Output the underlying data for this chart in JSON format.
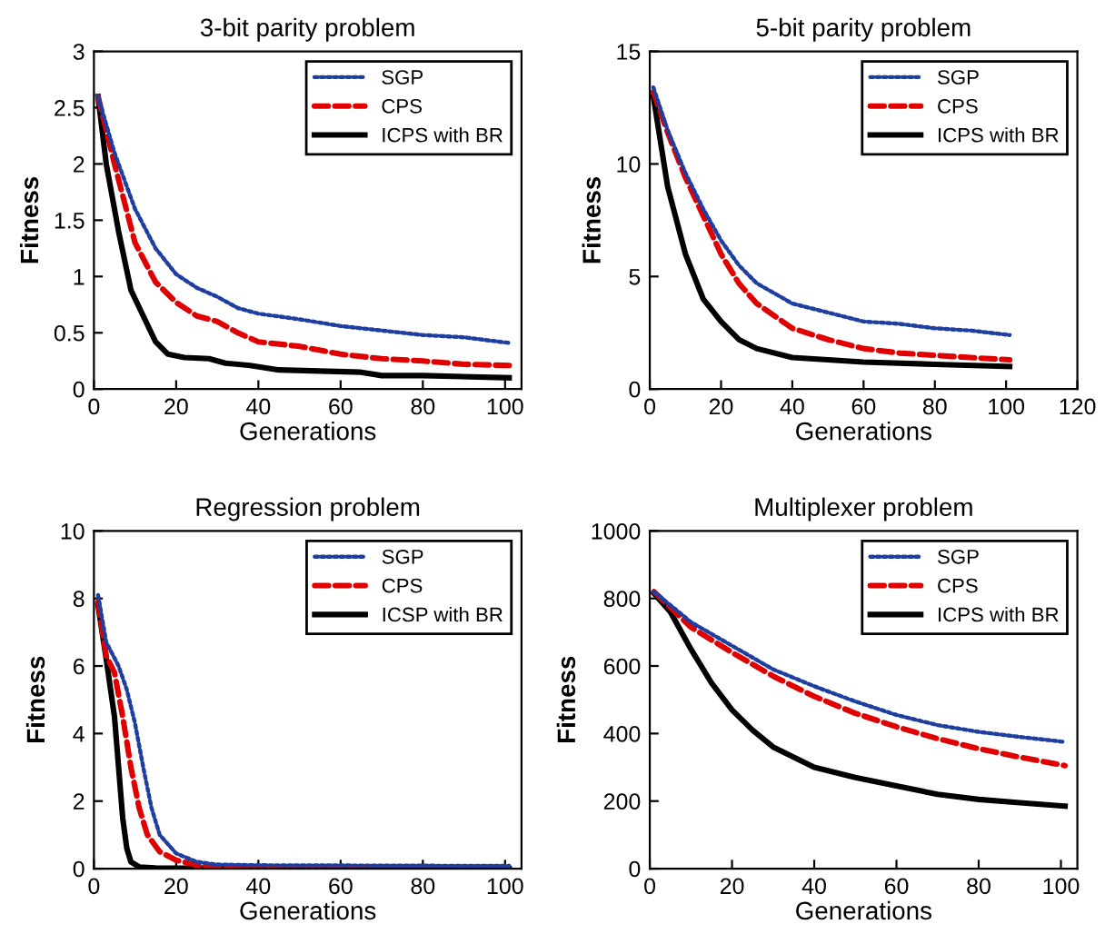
{
  "chart_data": [
    {
      "type": "line",
      "title": "3-bit parity problem",
      "xlabel": "Generations",
      "ylabel": "Fitness",
      "xlim": [
        0,
        104
      ],
      "xticks": [
        0,
        20,
        40,
        60,
        80,
        100
      ],
      "ylim": [
        0,
        3
      ],
      "yticks": [
        0,
        0.5,
        1,
        1.5,
        2,
        2.5,
        3
      ],
      "legend": "top right",
      "grid": false,
      "series": [
        {
          "name": "SGP",
          "color": "#1f3fa0",
          "line_style": "dotted",
          "x": [
            1,
            5,
            10,
            15,
            20,
            25,
            30,
            35,
            40,
            50,
            60,
            70,
            80,
            90,
            101
          ],
          "values": [
            2.6,
            2.1,
            1.6,
            1.25,
            1.02,
            0.9,
            0.82,
            0.72,
            0.67,
            0.62,
            0.56,
            0.52,
            0.48,
            0.46,
            0.41
          ]
        },
        {
          "name": "CPS",
          "color": "#e00000",
          "line_style": "dashed",
          "x": [
            1,
            5,
            10,
            15,
            20,
            25,
            30,
            35,
            40,
            50,
            60,
            70,
            80,
            90,
            101
          ],
          "values": [
            2.6,
            2.0,
            1.3,
            0.95,
            0.77,
            0.65,
            0.6,
            0.5,
            0.42,
            0.38,
            0.31,
            0.27,
            0.25,
            0.22,
            0.21
          ]
        },
        {
          "name": "ICPS with BR",
          "color": "#000000",
          "line_style": "solid",
          "x": [
            1,
            3,
            6,
            9,
            12,
            15,
            18,
            22,
            28,
            32,
            38,
            45,
            55,
            65,
            70,
            80,
            101
          ],
          "values": [
            2.6,
            2.0,
            1.4,
            0.88,
            0.65,
            0.42,
            0.31,
            0.28,
            0.27,
            0.23,
            0.21,
            0.17,
            0.16,
            0.15,
            0.12,
            0.12,
            0.1
          ]
        }
      ]
    },
    {
      "type": "line",
      "title": "5-bit parity problem",
      "xlabel": "Generations",
      "ylabel": "Fitness",
      "xlim": [
        0,
        120
      ],
      "xticks": [
        0,
        20,
        40,
        60,
        80,
        100,
        120
      ],
      "ylim": [
        0,
        15
      ],
      "yticks": [
        0,
        5,
        10,
        15
      ],
      "legend": "top right",
      "grid": false,
      "series": [
        {
          "name": "SGP",
          "color": "#1f3fa0",
          "line_style": "dotted",
          "x": [
            1,
            5,
            10,
            15,
            20,
            25,
            30,
            40,
            50,
            60,
            70,
            80,
            90,
            101
          ],
          "values": [
            13.4,
            11.5,
            9.6,
            8.0,
            6.6,
            5.5,
            4.7,
            3.8,
            3.4,
            3.0,
            2.9,
            2.7,
            2.6,
            2.4
          ]
        },
        {
          "name": "CPS",
          "color": "#e00000",
          "line_style": "dashed",
          "x": [
            1,
            5,
            10,
            15,
            20,
            25,
            30,
            40,
            50,
            60,
            70,
            80,
            90,
            101
          ],
          "values": [
            13.2,
            11.4,
            9.4,
            7.7,
            6.0,
            4.7,
            3.8,
            2.7,
            2.2,
            1.8,
            1.6,
            1.5,
            1.4,
            1.3
          ]
        },
        {
          "name": "ICPS with BR",
          "color": "#000000",
          "line_style": "solid",
          "x": [
            1,
            5,
            10,
            15,
            20,
            25,
            30,
            40,
            50,
            60,
            80,
            101
          ],
          "values": [
            13.0,
            9.0,
            6.0,
            4.0,
            3.0,
            2.2,
            1.8,
            1.4,
            1.3,
            1.2,
            1.1,
            1.0
          ]
        }
      ]
    },
    {
      "type": "line",
      "title": "Regression problem",
      "xlabel": "Generations",
      "ylabel": "Fitness",
      "xlim": [
        0,
        104
      ],
      "xticks": [
        0,
        20,
        40,
        60,
        80,
        100
      ],
      "ylim": [
        0,
        10
      ],
      "yticks": [
        0,
        2,
        4,
        6,
        8,
        10
      ],
      "legend": "top right",
      "grid": false,
      "series": [
        {
          "name": "SGP",
          "color": "#1f3fa0",
          "line_style": "dotted",
          "x": [
            1,
            3,
            6,
            8,
            10,
            12,
            14,
            16,
            20,
            25,
            30,
            40,
            101
          ],
          "values": [
            8.1,
            6.7,
            6.0,
            5.3,
            4.3,
            3.0,
            1.8,
            1.0,
            0.45,
            0.2,
            0.12,
            0.1,
            0.08
          ]
        },
        {
          "name": "CPS",
          "color": "#e00000",
          "line_style": "dashed",
          "x": [
            1,
            3,
            5,
            7,
            9,
            11,
            13,
            16,
            20,
            25,
            30,
            101
          ],
          "values": [
            7.9,
            6.3,
            5.8,
            4.5,
            3.0,
            1.8,
            1.0,
            0.5,
            0.25,
            0.1,
            0.05,
            0.03
          ]
        },
        {
          "name": "ICSP with BR",
          "color": "#000000",
          "line_style": "solid",
          "x": [
            1,
            3,
            5,
            6,
            7,
            8,
            9,
            11,
            15,
            101
          ],
          "values": [
            7.8,
            6.2,
            4.5,
            3.0,
            1.5,
            0.6,
            0.2,
            0.05,
            0.02,
            0.0
          ]
        }
      ]
    },
    {
      "type": "line",
      "title": "Multiplexer problem",
      "xlabel": "Generations",
      "ylabel": "Fitness",
      "xlim": [
        0,
        104
      ],
      "xticks": [
        0,
        20,
        40,
        60,
        80,
        100
      ],
      "ylim": [
        0,
        1000
      ],
      "yticks": [
        0,
        200,
        400,
        600,
        800,
        1000
      ],
      "legend": "top right",
      "grid": false,
      "series": [
        {
          "name": "SGP",
          "color": "#1f3fa0",
          "line_style": "dotted",
          "x": [
            1,
            10,
            20,
            30,
            40,
            50,
            60,
            70,
            80,
            90,
            101
          ],
          "values": [
            820,
            730,
            660,
            590,
            540,
            495,
            455,
            425,
            405,
            390,
            375
          ]
        },
        {
          "name": "CPS",
          "color": "#e00000",
          "line_style": "dashed",
          "x": [
            1,
            10,
            20,
            30,
            40,
            50,
            60,
            70,
            80,
            90,
            101
          ],
          "values": [
            820,
            715,
            640,
            570,
            510,
            460,
            420,
            385,
            355,
            330,
            305
          ]
        },
        {
          "name": "ICPS with BR",
          "color": "#000000",
          "line_style": "solid",
          "x": [
            1,
            5,
            10,
            15,
            20,
            25,
            30,
            40,
            50,
            60,
            70,
            80,
            90,
            101
          ],
          "values": [
            815,
            760,
            650,
            550,
            470,
            410,
            360,
            300,
            270,
            245,
            220,
            205,
            195,
            185
          ]
        }
      ]
    }
  ]
}
